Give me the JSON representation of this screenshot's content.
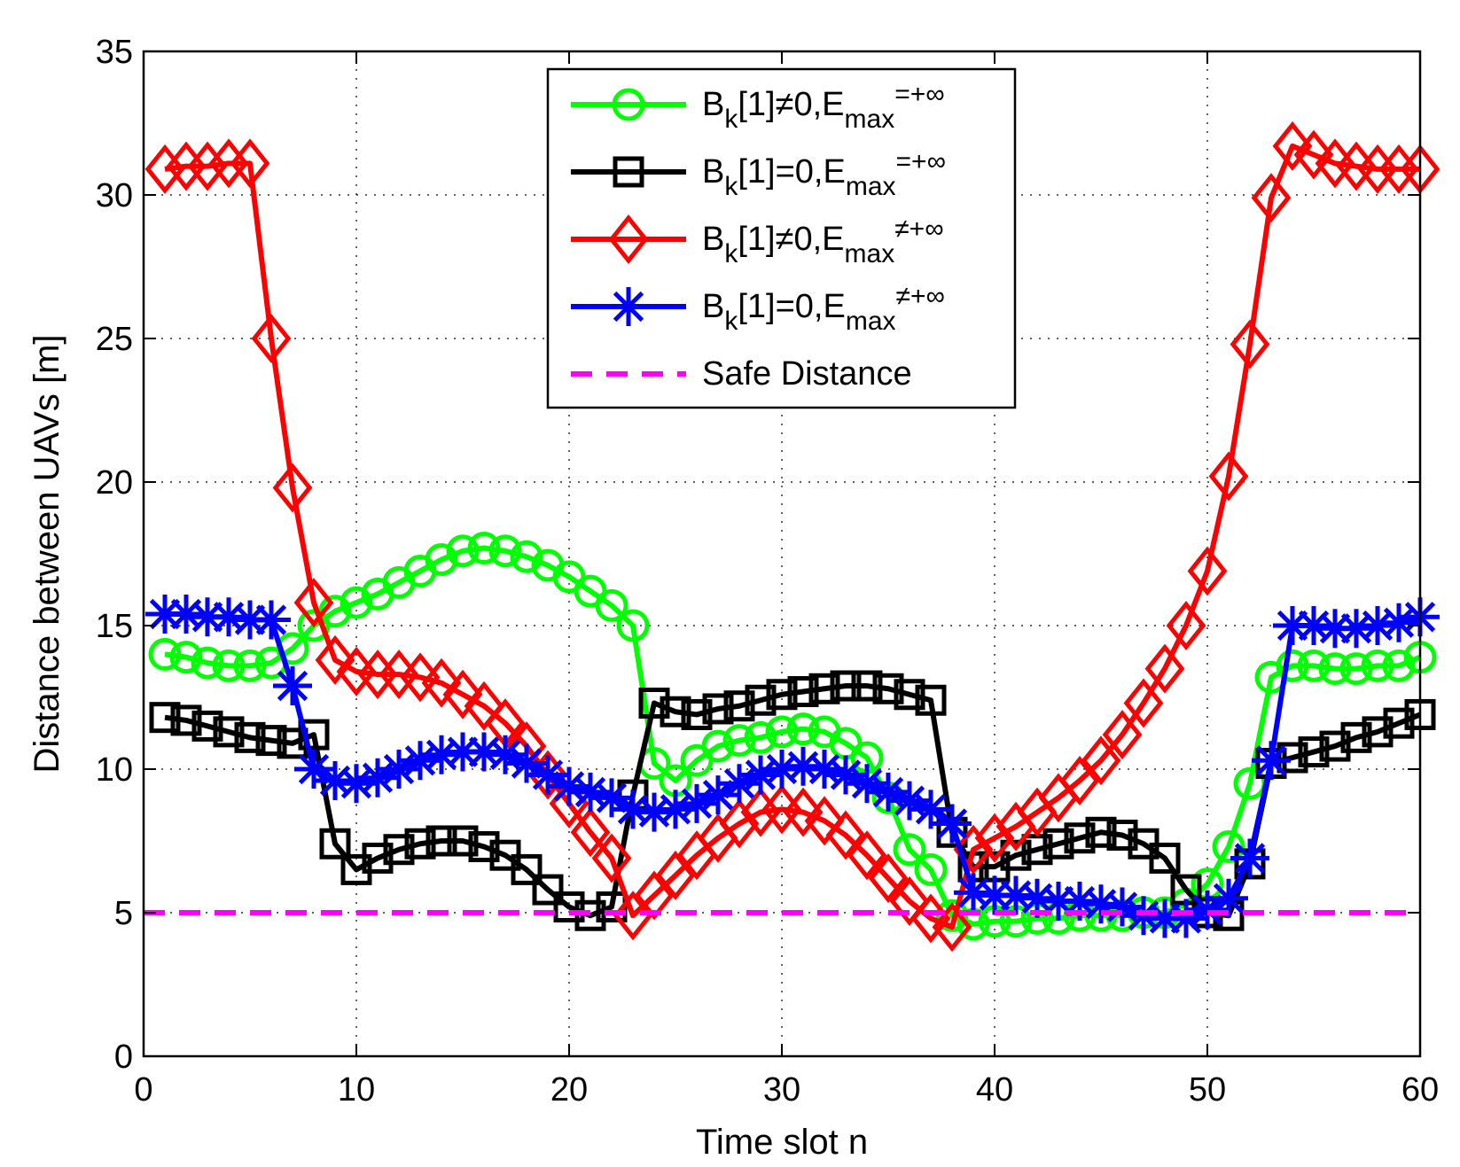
{
  "chart_data": {
    "type": "line",
    "title": "",
    "xlabel": "Time slot n",
    "ylabel": "Distance between UAVs [m]",
    "xlim": [
      0,
      60
    ],
    "ylim": [
      0,
      35
    ],
    "xticks": [
      0,
      10,
      20,
      30,
      40,
      50,
      60
    ],
    "yticks": [
      0,
      5,
      10,
      15,
      20,
      25,
      30,
      35
    ],
    "xtick_labels": [
      "0",
      "10",
      "20",
      "30",
      "40",
      "50",
      "60"
    ],
    "ytick_labels": [
      "0",
      "5",
      "10",
      "15",
      "20",
      "25",
      "30",
      "35"
    ],
    "grid": true,
    "legend_position": "top-center",
    "series": [
      {
        "name": "Bk[1]≠0,Emax=+∞",
        "legend": {
          "base": "B",
          "sub1": "k",
          "mid": "[1]≠0,E",
          "sub2": "max",
          "tail": "=+∞"
        },
        "color": "#00ff00",
        "marker": "circle",
        "x": [
          1,
          2,
          3,
          4,
          5,
          6,
          7,
          8,
          9,
          10,
          11,
          12,
          13,
          14,
          15,
          16,
          17,
          18,
          19,
          20,
          21,
          22,
          23,
          24,
          25,
          26,
          27,
          28,
          29,
          30,
          31,
          32,
          33,
          34,
          35,
          36,
          37,
          38,
          39,
          40,
          41,
          42,
          43,
          44,
          45,
          46,
          47,
          48,
          49,
          50,
          51,
          52,
          53,
          54,
          55,
          56,
          57,
          58,
          59,
          60
        ],
        "y": [
          14.0,
          13.9,
          13.7,
          13.6,
          13.6,
          13.7,
          14.2,
          15.0,
          15.5,
          15.8,
          16.1,
          16.5,
          16.9,
          17.3,
          17.6,
          17.7,
          17.6,
          17.4,
          17.1,
          16.7,
          16.2,
          15.7,
          15.0,
          10.2,
          9.6,
          10.3,
          10.8,
          11.0,
          11.1,
          11.3,
          11.4,
          11.3,
          10.9,
          10.4,
          9.0,
          7.2,
          6.5,
          4.9,
          4.6,
          4.7,
          4.7,
          4.8,
          4.8,
          4.9,
          4.9,
          4.9,
          5.0,
          5.0,
          5.3,
          6.0,
          7.3,
          9.5,
          13.2,
          13.6,
          13.6,
          13.5,
          13.5,
          13.6,
          13.6,
          13.9
        ]
      },
      {
        "name": "Bk[1]=0,Emax=+∞",
        "legend": {
          "base": "B",
          "sub1": "k",
          "mid": "[1]=0,E",
          "sub2": "max",
          "tail": "=+∞"
        },
        "color": "#000000",
        "marker": "square",
        "x": [
          1,
          2,
          3,
          4,
          5,
          6,
          7,
          8,
          9,
          10,
          11,
          12,
          13,
          14,
          15,
          16,
          17,
          18,
          19,
          20,
          21,
          22,
          23,
          24,
          25,
          26,
          27,
          28,
          29,
          30,
          31,
          32,
          33,
          34,
          35,
          36,
          37,
          38,
          39,
          40,
          41,
          42,
          43,
          44,
          45,
          46,
          47,
          48,
          49,
          50,
          51,
          52,
          53,
          54,
          55,
          56,
          57,
          58,
          59,
          60
        ],
        "y": [
          11.8,
          11.7,
          11.5,
          11.3,
          11.1,
          11.0,
          10.9,
          11.2,
          7.4,
          6.5,
          6.9,
          7.2,
          7.4,
          7.5,
          7.5,
          7.3,
          7.0,
          6.5,
          5.8,
          5.2,
          4.9,
          5.2,
          9.1,
          12.3,
          12.0,
          11.9,
          12.1,
          12.2,
          12.4,
          12.6,
          12.7,
          12.8,
          12.9,
          12.9,
          12.8,
          12.6,
          12.4,
          7.8,
          6.6,
          6.6,
          7.0,
          7.2,
          7.4,
          7.6,
          7.8,
          7.7,
          7.4,
          6.9,
          5.8,
          5.0,
          4.9,
          6.7,
          10.2,
          10.4,
          10.6,
          10.8,
          11.1,
          11.3,
          11.6,
          11.9
        ]
      },
      {
        "name": "Bk[1]≠0,Emax≠+∞",
        "legend": {
          "base": "B",
          "sub1": "k",
          "mid": "[1]≠0,E",
          "sub2": "max",
          "tail": "≠+∞"
        },
        "color": "#ff0000",
        "marker": "diamond",
        "x": [
          1,
          2,
          3,
          4,
          5,
          6,
          7,
          8,
          9,
          10,
          11,
          12,
          13,
          14,
          15,
          16,
          17,
          18,
          19,
          20,
          21,
          22,
          23,
          24,
          25,
          26,
          27,
          28,
          29,
          30,
          31,
          32,
          33,
          34,
          35,
          36,
          37,
          38,
          39,
          40,
          41,
          42,
          43,
          44,
          45,
          46,
          47,
          48,
          49,
          50,
          51,
          52,
          53,
          54,
          55,
          56,
          57,
          58,
          59,
          60
        ],
        "y": [
          30.9,
          31.0,
          31.0,
          31.1,
          31.1,
          25.0,
          19.8,
          15.8,
          13.8,
          13.4,
          13.3,
          13.3,
          13.2,
          13.0,
          12.6,
          12.2,
          11.6,
          10.8,
          9.8,
          8.8,
          7.8,
          6.9,
          4.9,
          5.6,
          6.3,
          7.0,
          7.6,
          8.1,
          8.5,
          8.6,
          8.5,
          8.2,
          7.7,
          7.0,
          6.2,
          5.4,
          4.8,
          4.5,
          7.2,
          7.6,
          8.0,
          8.5,
          9.0,
          9.6,
          10.3,
          11.2,
          12.3,
          13.5,
          15.0,
          16.9,
          20.2,
          24.8,
          29.9,
          31.7,
          31.4,
          31.1,
          31.0,
          30.9,
          30.9,
          30.9
        ]
      },
      {
        "name": "Bk[1]=0,Emax≠+∞",
        "legend": {
          "base": "B",
          "sub1": "k",
          "mid": "[1]=0,E",
          "sub2": "max",
          "tail": "≠+∞"
        },
        "color": "#0000ff",
        "marker": "asterisk",
        "x": [
          1,
          2,
          3,
          4,
          5,
          6,
          7,
          8,
          9,
          10,
          11,
          12,
          13,
          14,
          15,
          16,
          17,
          18,
          19,
          20,
          21,
          22,
          23,
          24,
          25,
          26,
          27,
          28,
          29,
          30,
          31,
          32,
          33,
          34,
          35,
          36,
          37,
          38,
          39,
          40,
          41,
          42,
          43,
          44,
          45,
          46,
          47,
          48,
          49,
          50,
          51,
          52,
          53,
          54,
          55,
          56,
          57,
          58,
          59,
          60
        ],
        "y": [
          15.4,
          15.4,
          15.3,
          15.3,
          15.2,
          15.2,
          12.9,
          10.0,
          9.6,
          9.5,
          9.7,
          10.0,
          10.3,
          10.5,
          10.6,
          10.6,
          10.5,
          10.2,
          9.8,
          9.4,
          9.2,
          9.0,
          8.6,
          8.5,
          8.6,
          8.8,
          9.1,
          9.5,
          9.8,
          10.0,
          10.1,
          10.0,
          9.8,
          9.5,
          9.2,
          8.9,
          8.6,
          8.1,
          5.7,
          5.6,
          5.6,
          5.5,
          5.4,
          5.4,
          5.3,
          5.2,
          4.9,
          4.8,
          4.8,
          5.1,
          5.5,
          6.9,
          10.3,
          15.0,
          15.0,
          14.9,
          14.9,
          15.0,
          15.1,
          15.3
        ]
      },
      {
        "name": "Safe Distance",
        "legend": {
          "base": "Safe Distance",
          "sub1": "",
          "mid": "",
          "sub2": "",
          "tail": ""
        },
        "color": "#ff00ff",
        "marker": "none",
        "dashed": true,
        "x": [
          0,
          60
        ],
        "y": [
          5,
          5
        ]
      }
    ]
  }
}
